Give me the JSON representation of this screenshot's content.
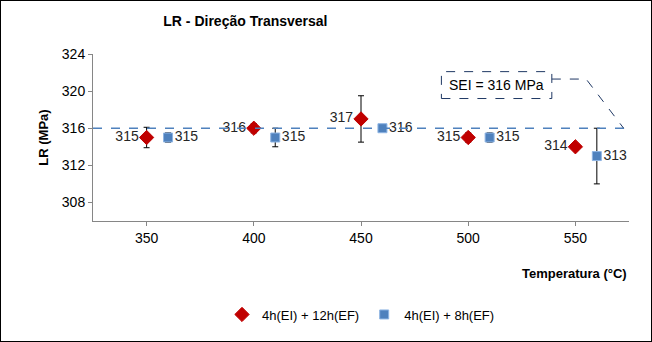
{
  "chart_data": {
    "type": "scatter",
    "title": "LR - Direção Transversal",
    "xlabel": "Temperatura (°C)",
    "ylabel": "LR (MPa)",
    "series": [
      {
        "name": "4h(EI) + 12h(EF)",
        "color": "#c00000",
        "marker": "diamond",
        "x": [
          350,
          400,
          450,
          500,
          550
        ],
        "values": [
          315,
          316,
          317,
          315,
          314
        ],
        "errors": [
          1.1,
          0.5,
          2.5,
          0.5,
          0
        ]
      },
      {
        "name": "4h(EI) + 8h(EF)",
        "color": "#4f81bd",
        "marker": "square",
        "x": [
          360,
          410,
          460,
          510,
          560
        ],
        "values": [
          315,
          315,
          316,
          315,
          313
        ],
        "errors": [
          0.5,
          1,
          0.2,
          0.5,
          3
        ]
      }
    ],
    "reference_line": {
      "value": 316,
      "label": "SEI = 316 MPa",
      "color": "#4f81bd",
      "line_style": "dash"
    },
    "xlim": [
      325,
      575
    ],
    "xticks": [
      350,
      400,
      450,
      500,
      550
    ],
    "ylim": [
      306,
      324
    ],
    "yticks": [
      308,
      312,
      316,
      320,
      324
    ],
    "grid": false,
    "data_labels": true,
    "legend": "bottom"
  }
}
